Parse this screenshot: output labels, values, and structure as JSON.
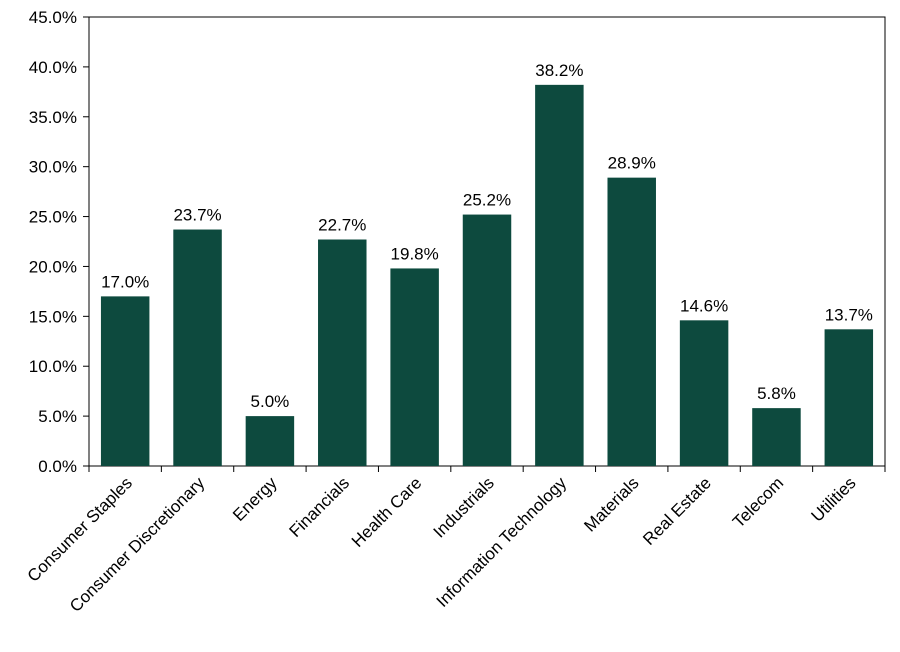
{
  "chart_data": {
    "type": "bar",
    "title": "",
    "xlabel": "",
    "ylabel": "",
    "categories": [
      "Consumer Staples",
      "Consumer Discretionary",
      "Energy",
      "Financials",
      "Health Care",
      "Industrials",
      "Information Technology",
      "Materials",
      "Real Estate",
      "Telecom",
      "Utilities"
    ],
    "values": [
      17.0,
      23.7,
      5.0,
      22.7,
      19.8,
      25.2,
      38.2,
      28.9,
      14.6,
      5.8,
      13.7
    ],
    "value_labels": [
      "17.0%",
      "23.7%",
      "5.0%",
      "22.7%",
      "19.8%",
      "25.2%",
      "38.2%",
      "28.9%",
      "14.6%",
      "5.8%",
      "13.7%"
    ],
    "yticks": [
      0,
      5,
      10,
      15,
      20,
      25,
      30,
      35,
      40,
      45
    ],
    "ytick_labels": [
      "0.0%",
      "5.0%",
      "10.0%",
      "15.0%",
      "20.0%",
      "25.0%",
      "30.0%",
      "35.0%",
      "40.0%",
      "45.0%"
    ],
    "ylim": [
      0,
      45
    ],
    "grid": false,
    "legend": "none",
    "bar_color": "#0d4a3e"
  }
}
